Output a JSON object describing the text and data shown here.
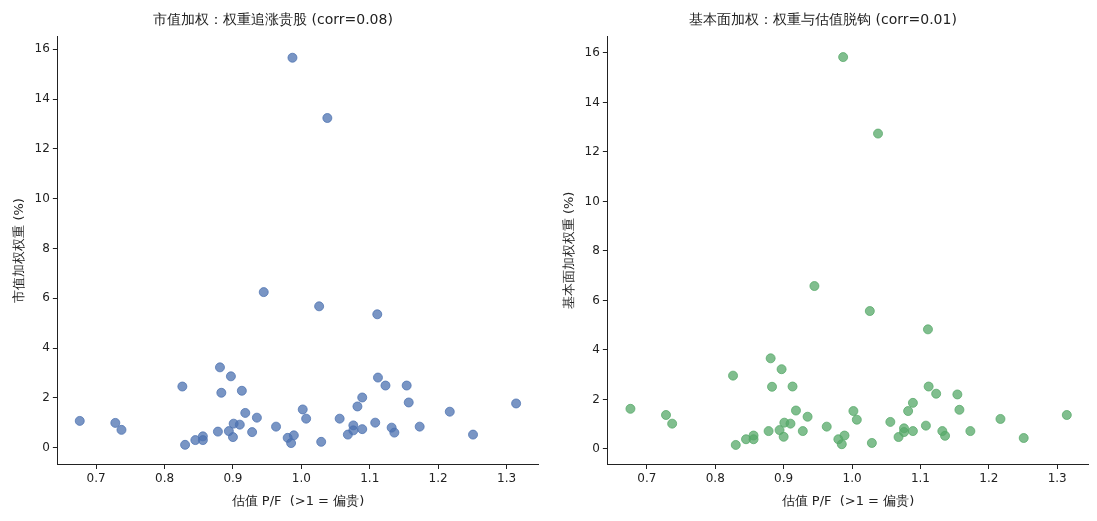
{
  "chart_data": [
    {
      "type": "scatter",
      "title": "市值加权：权重追涨贵股 (corr=0.08)",
      "xlabel": "估值 P/F  (>1 = 偏贵)",
      "ylabel": "市值加权权重 (%)",
      "x": [
        0.676,
        0.728,
        0.737,
        0.826,
        0.83,
        0.845,
        0.856,
        0.856,
        0.878,
        0.881,
        0.883,
        0.894,
        0.897,
        0.9,
        0.901,
        0.91,
        0.913,
        0.918,
        0.928,
        0.935,
        0.963,
        0.98,
        0.985,
        0.989,
        1.002,
        1.007,
        1.029,
        1.056,
        1.068,
        1.076,
        1.076,
        1.082,
        1.089,
        1.089,
        1.108,
        1.112,
        1.123,
        1.132,
        1.136,
        1.154,
        1.157,
        1.173,
        1.217,
        1.251,
        1.314,
        0.987,
        1.038,
        0.945,
        1.026,
        1.111
      ],
      "series": [
        {
          "color": "#4c72b0",
          "values": [
            1.08,
            1.0,
            0.72,
            2.46,
            0.12,
            0.31,
            0.46,
            0.31,
            0.65,
            3.23,
            2.21,
            0.67,
            2.87,
            0.43,
            0.97,
            0.93,
            2.29,
            1.4,
            0.63,
            1.21,
            0.85,
            0.4,
            0.19,
            0.5,
            1.54,
            1.17,
            0.24,
            1.17,
            0.53,
            0.9,
            0.7,
            1.66,
            2.02,
            0.75,
            1.01,
            2.82,
            2.5,
            0.81,
            0.61,
            2.5,
            1.82,
            0.85,
            1.45,
            0.53,
            1.78,
            15.66,
            13.24,
            6.25,
            5.68,
            5.36
          ]
        }
      ],
      "xlim": [
        0.644,
        1.346
      ],
      "ylim": [
        -0.65,
        16.5
      ],
      "xticks": [
        0.7,
        0.8,
        0.9,
        {
          "value": 1,
          "label": "1.0"
        },
        1.1,
        1.2,
        1.3
      ],
      "yticks": [
        0,
        2,
        4,
        6,
        8,
        10,
        12,
        14,
        16
      ],
      "grid": false,
      "legend": false,
      "marker": "circle"
    },
    {
      "type": "scatter",
      "title": "基本面加权：权重与估值脱钩 (corr=0.01)",
      "xlabel": "估值 P/F  (>1 = 偏贵)",
      "ylabel": "基本面加权权重 (%)",
      "x": [
        0.676,
        0.728,
        0.737,
        0.826,
        0.83,
        0.845,
        0.856,
        0.856,
        0.878,
        0.881,
        0.883,
        0.894,
        0.897,
        0.9,
        0.901,
        0.91,
        0.913,
        0.918,
        0.928,
        0.935,
        0.963,
        0.98,
        0.985,
        0.989,
        1.002,
        1.007,
        1.029,
        1.056,
        1.068,
        1.076,
        1.076,
        1.082,
        1.089,
        1.089,
        1.108,
        1.112,
        1.123,
        1.132,
        1.136,
        1.154,
        1.157,
        1.173,
        1.217,
        1.251,
        1.314,
        0.987,
        1.038,
        0.945,
        1.026,
        1.111
      ],
      "series": [
        {
          "color": "#55a868",
          "values": [
            1.62,
            1.37,
            1.02,
            2.96,
            0.16,
            0.39,
            0.54,
            0.39,
            0.72,
            3.66,
            2.51,
            0.76,
            3.22,
            0.49,
            1.06,
            1.02,
            2.52,
            1.55,
            0.72,
            1.3,
            0.9,
            0.39,
            0.19,
            0.54,
            1.53,
            1.18,
            0.24,
            1.09,
            0.48,
            0.83,
            0.68,
            1.53,
            1.86,
            0.72,
            0.94,
            2.52,
            2.23,
            0.72,
            0.53,
            2.2,
            1.58,
            0.72,
            1.21,
            0.44,
            1.37,
            15.83,
            12.74,
            6.58,
            5.57,
            4.83
          ]
        }
      ],
      "xlim": [
        0.643,
        1.345
      ],
      "ylim": [
        -0.61,
        16.65
      ],
      "xticks": [
        0.7,
        0.8,
        0.9,
        {
          "value": 1,
          "label": "1.0"
        },
        1.1,
        1.2,
        1.3
      ],
      "yticks": [
        0,
        2,
        4,
        6,
        8,
        10,
        12,
        14,
        16
      ],
      "grid": false,
      "legend": false,
      "marker": "circle"
    }
  ]
}
